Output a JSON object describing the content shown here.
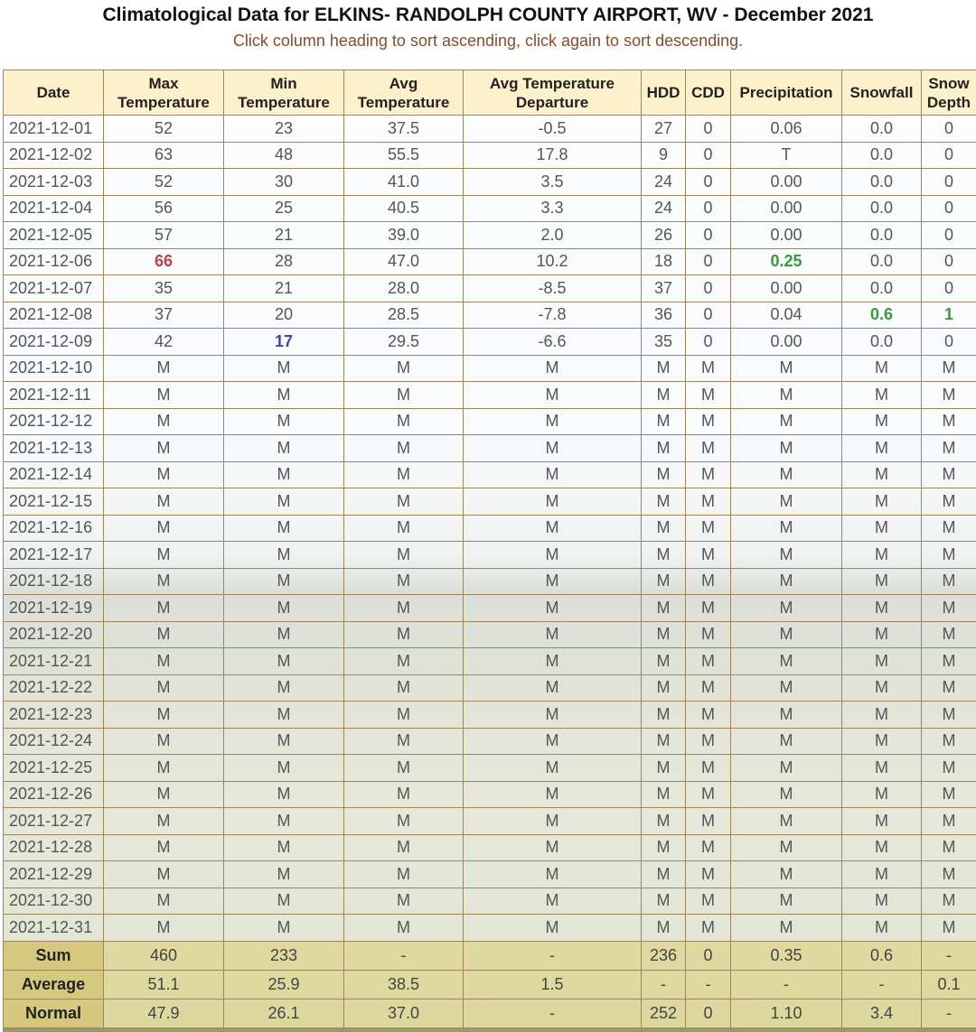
{
  "header": {
    "title": "Climatological Data for ELKINS- RANDOLPH COUNTY AIRPORT, WV - December 2021",
    "subtitle": "Click column heading to sort ascending, click again to sort descending."
  },
  "table": {
    "columns": [
      "Date",
      "Max Temperature",
      "Min Temperature",
      "Avg Temperature",
      "Avg Temperature Departure",
      "HDD",
      "CDD",
      "Precipitation",
      "Snowfall",
      "Snow Depth"
    ],
    "rows": [
      [
        "2021-12-01",
        "52",
        "23",
        "37.5",
        "-0.5",
        "27",
        "0",
        "0.06",
        "0.0",
        "0"
      ],
      [
        "2021-12-02",
        "63",
        "48",
        "55.5",
        "17.8",
        "9",
        "0",
        "T",
        "0.0",
        "0"
      ],
      [
        "2021-12-03",
        "52",
        "30",
        "41.0",
        "3.5",
        "24",
        "0",
        "0.00",
        "0.0",
        "0"
      ],
      [
        "2021-12-04",
        "56",
        "25",
        "40.5",
        "3.3",
        "24",
        "0",
        "0.00",
        "0.0",
        "0"
      ],
      [
        "2021-12-05",
        "57",
        "21",
        "39.0",
        "2.0",
        "26",
        "0",
        "0.00",
        "0.0",
        "0"
      ],
      [
        "2021-12-06",
        "66",
        "28",
        "47.0",
        "10.2",
        "18",
        "0",
        "0.25",
        "0.0",
        "0"
      ],
      [
        "2021-12-07",
        "35",
        "21",
        "28.0",
        "-8.5",
        "37",
        "0",
        "0.00",
        "0.0",
        "0"
      ],
      [
        "2021-12-08",
        "37",
        "20",
        "28.5",
        "-7.8",
        "36",
        "0",
        "0.04",
        "0.6",
        "1"
      ],
      [
        "2021-12-09",
        "42",
        "17",
        "29.5",
        "-6.6",
        "35",
        "0",
        "0.00",
        "0.0",
        "0"
      ],
      [
        "2021-12-10",
        "M",
        "M",
        "M",
        "M",
        "M",
        "M",
        "M",
        "M",
        "M"
      ],
      [
        "2021-12-11",
        "M",
        "M",
        "M",
        "M",
        "M",
        "M",
        "M",
        "M",
        "M"
      ],
      [
        "2021-12-12",
        "M",
        "M",
        "M",
        "M",
        "M",
        "M",
        "M",
        "M",
        "M"
      ],
      [
        "2021-12-13",
        "M",
        "M",
        "M",
        "M",
        "M",
        "M",
        "M",
        "M",
        "M"
      ],
      [
        "2021-12-14",
        "M",
        "M",
        "M",
        "M",
        "M",
        "M",
        "M",
        "M",
        "M"
      ],
      [
        "2021-12-15",
        "M",
        "M",
        "M",
        "M",
        "M",
        "M",
        "M",
        "M",
        "M"
      ],
      [
        "2021-12-16",
        "M",
        "M",
        "M",
        "M",
        "M",
        "M",
        "M",
        "M",
        "M"
      ],
      [
        "2021-12-17",
        "M",
        "M",
        "M",
        "M",
        "M",
        "M",
        "M",
        "M",
        "M"
      ],
      [
        "2021-12-18",
        "M",
        "M",
        "M",
        "M",
        "M",
        "M",
        "M",
        "M",
        "M"
      ],
      [
        "2021-12-19",
        "M",
        "M",
        "M",
        "M",
        "M",
        "M",
        "M",
        "M",
        "M"
      ],
      [
        "2021-12-20",
        "M",
        "M",
        "M",
        "M",
        "M",
        "M",
        "M",
        "M",
        "M"
      ],
      [
        "2021-12-21",
        "M",
        "M",
        "M",
        "M",
        "M",
        "M",
        "M",
        "M",
        "M"
      ],
      [
        "2021-12-22",
        "M",
        "M",
        "M",
        "M",
        "M",
        "M",
        "M",
        "M",
        "M"
      ],
      [
        "2021-12-23",
        "M",
        "M",
        "M",
        "M",
        "M",
        "M",
        "M",
        "M",
        "M"
      ],
      [
        "2021-12-24",
        "M",
        "M",
        "M",
        "M",
        "M",
        "M",
        "M",
        "M",
        "M"
      ],
      [
        "2021-12-25",
        "M",
        "M",
        "M",
        "M",
        "M",
        "M",
        "M",
        "M",
        "M"
      ],
      [
        "2021-12-26",
        "M",
        "M",
        "M",
        "M",
        "M",
        "M",
        "M",
        "M",
        "M"
      ],
      [
        "2021-12-27",
        "M",
        "M",
        "M",
        "M",
        "M",
        "M",
        "M",
        "M",
        "M"
      ],
      [
        "2021-12-28",
        "M",
        "M",
        "M",
        "M",
        "M",
        "M",
        "M",
        "M",
        "M"
      ],
      [
        "2021-12-29",
        "M",
        "M",
        "M",
        "M",
        "M",
        "M",
        "M",
        "M",
        "M"
      ],
      [
        "2021-12-30",
        "M",
        "M",
        "M",
        "M",
        "M",
        "M",
        "M",
        "M",
        "M"
      ],
      [
        "2021-12-31",
        "M",
        "M",
        "M",
        "M",
        "M",
        "M",
        "M",
        "M",
        "M"
      ]
    ],
    "summary": [
      [
        "Sum",
        "460",
        "233",
        "-",
        "-",
        "236",
        "0",
        "0.35",
        "0.6",
        "-"
      ],
      [
        "Average",
        "51.1",
        "25.9",
        "38.5",
        "1.5",
        "-",
        "-",
        "-",
        "-",
        "0.1"
      ],
      [
        "Normal",
        "47.9",
        "26.1",
        "37.0",
        "-",
        "252",
        "0",
        "1.10",
        "3.4",
        "-"
      ]
    ]
  }
}
